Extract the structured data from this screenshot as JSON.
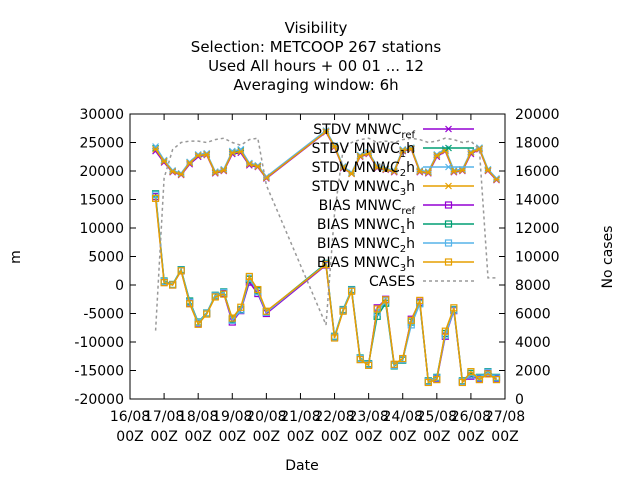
{
  "chart_data": {
    "type": "line",
    "title_lines": [
      "Visibility",
      "Selection: METCOOP     267 stations",
      "Used  All hours  + 00 01 ... 12",
      "Averaging window:  6h"
    ],
    "xlabel": "Date",
    "ylabel": "m",
    "y2label": "No cases",
    "ylim": [
      -20000,
      30000
    ],
    "y2lim": [
      0,
      20000
    ],
    "yticks": [
      -20000,
      -15000,
      -10000,
      -5000,
      0,
      5000,
      10000,
      15000,
      20000,
      25000,
      30000
    ],
    "y2ticks": [
      0,
      2000,
      4000,
      6000,
      8000,
      10000,
      12000,
      14000,
      16000,
      18000,
      20000
    ],
    "xlim": [
      0,
      11
    ],
    "xticks": [
      {
        "value": 0,
        "line1": "16/08",
        "line2": "00Z"
      },
      {
        "value": 1,
        "line1": "17/08",
        "line2": "00Z"
      },
      {
        "value": 2,
        "line1": "18/08",
        "line2": "00Z"
      },
      {
        "value": 3,
        "line1": "19/08",
        "line2": "00Z"
      },
      {
        "value": 4,
        "line1": "20/08",
        "line2": "00Z"
      },
      {
        "value": 5,
        "line1": "21/08",
        "line2": "00Z"
      },
      {
        "value": 6,
        "line1": "22/08",
        "line2": "00Z"
      },
      {
        "value": 7,
        "line1": "23/08",
        "line2": "00Z"
      },
      {
        "value": 8,
        "line1": "24/08",
        "line2": "00Z"
      },
      {
        "value": 9,
        "line1": "25/08",
        "line2": "00Z"
      },
      {
        "value": 10,
        "line1": "26/08",
        "line2": "00Z"
      },
      {
        "value": 11,
        "line1": "27/08",
        "line2": "00Z"
      }
    ],
    "x": [
      0.75,
      1.0,
      1.25,
      1.5,
      1.75,
      2.0,
      2.25,
      2.5,
      2.75,
      3.0,
      3.25,
      3.5,
      3.75,
      4.0,
      5.75,
      6.0,
      6.25,
      6.5,
      6.75,
      7.0,
      7.25,
      7.5,
      7.75,
      8.0,
      8.25,
      8.5,
      8.75,
      9.0,
      9.25,
      9.5,
      9.75,
      10.0,
      10.25,
      10.5,
      10.75
    ],
    "series": [
      {
        "name": "STDV MNWC_ref",
        "base": "STDV MNWC",
        "sub": "ref",
        "color": "#9400d3",
        "marker": "x",
        "dash": false,
        "axis": "y1",
        "values": [
          23500,
          21500,
          19800,
          19300,
          21200,
          22500,
          22800,
          19600,
          20000,
          23000,
          23200,
          21000,
          20700,
          18700,
          26800,
          24200,
          20500,
          19500,
          22500,
          23000,
          20500,
          20200,
          19800,
          23500,
          23800,
          19800,
          19600,
          22500,
          23500,
          19800,
          20000,
          23000,
          23800,
          20000,
          18400
        ]
      },
      {
        "name": "STDV MNWC_1h",
        "base": "STDV MNWC",
        "sub": "1",
        "suffix": "h",
        "color": "#009e73",
        "marker": "x",
        "dash": false,
        "axis": "y1",
        "values": [
          24000,
          21800,
          20000,
          19500,
          21500,
          22800,
          23000,
          19800,
          20200,
          23300,
          23600,
          21300,
          20900,
          18900,
          27000,
          24400,
          20700,
          19600,
          22700,
          23200,
          20700,
          20400,
          20000,
          23700,
          24000,
          20000,
          19800,
          22800,
          23800,
          20000,
          20200,
          23300,
          24000,
          20200,
          18600
        ]
      },
      {
        "name": "STDV MNWC_2h",
        "base": "STDV MNWC",
        "sub": "2",
        "suffix": "h",
        "color": "#56b4e9",
        "marker": "x",
        "dash": false,
        "axis": "y1",
        "values": [
          24300,
          21900,
          20100,
          19600,
          21600,
          22900,
          23100,
          19900,
          20300,
          23500,
          23800,
          21400,
          21000,
          19000,
          27100,
          24500,
          20800,
          19700,
          22800,
          23300,
          20800,
          20500,
          20100,
          23800,
          24100,
          20100,
          19900,
          22900,
          23900,
          20100,
          20300,
          23400,
          24100,
          20300,
          18700
        ]
      },
      {
        "name": "STDV MNWC_3h",
        "base": "STDV MNWC",
        "sub": "3",
        "suffix": "h",
        "color": "#e69f00",
        "marker": "x",
        "dash": false,
        "axis": "y1",
        "values": [
          23800,
          21700,
          19900,
          19400,
          21400,
          22700,
          22900,
          19700,
          20100,
          23200,
          23400,
          21200,
          20800,
          18800,
          26900,
          24300,
          20600,
          19500,
          22600,
          23100,
          20600,
          20300,
          19900,
          23600,
          23900,
          19900,
          19700,
          22700,
          23600,
          19900,
          20100,
          23200,
          23900,
          20100,
          18500
        ]
      },
      {
        "name": "BIAS MNWC_ref",
        "base": "BIAS MNWC",
        "sub": "ref",
        "color": "#9400d3",
        "marker": "square",
        "dash": false,
        "axis": "y1",
        "values": [
          15500,
          500,
          0,
          2500,
          -3200,
          -6800,
          -5000,
          -2000,
          -1500,
          -6500,
          -4500,
          500,
          -1500,
          -5000,
          3500,
          -9200,
          -4500,
          -1000,
          -13000,
          -14000,
          -4000,
          -2500,
          -14000,
          -13000,
          -6000,
          -3000,
          -17000,
          -16500,
          -9000,
          -4500,
          -17000,
          -16000,
          -16500,
          -15500,
          -16500
        ]
      },
      {
        "name": "BIAS MNWC_1h",
        "base": "BIAS MNWC",
        "sub": "1",
        "suffix": "h",
        "color": "#009e73",
        "marker": "square",
        "dash": false,
        "axis": "y1",
        "values": [
          16000,
          700,
          100,
          2700,
          -2800,
          -6500,
          -4900,
          -1800,
          -1200,
          -6000,
          -4300,
          1000,
          -1000,
          -4700,
          3800,
          -9000,
          -4300,
          -800,
          -12800,
          -13800,
          -5500,
          -3200,
          -14200,
          -13200,
          -6500,
          -3200,
          -16800,
          -16200,
          -8500,
          -4300,
          -16800,
          -15500,
          -16200,
          -15200,
          -16200
        ]
      },
      {
        "name": "BIAS MNWC_2h",
        "base": "BIAS MNWC",
        "sub": "2",
        "suffix": "h",
        "color": "#56b4e9",
        "marker": "square",
        "dash": false,
        "axis": "y1",
        "values": [
          15800,
          600,
          50,
          2600,
          -3000,
          -6600,
          -4950,
          -1900,
          -1300,
          -6200,
          -4400,
          1200,
          -1200,
          -4800,
          3700,
          -9100,
          -4400,
          -900,
          -12900,
          -13900,
          -4800,
          -2800,
          -14100,
          -13100,
          -7000,
          -3300,
          -16900,
          -16300,
          -8800,
          -4400,
          -16900,
          -15800,
          -16300,
          -15300,
          -16300
        ]
      },
      {
        "name": "BIAS MNWC_3h",
        "base": "BIAS MNWC",
        "sub": "3",
        "suffix": "h",
        "color": "#e69f00",
        "marker": "square",
        "dash": false,
        "axis": "y1",
        "values": [
          15200,
          400,
          0,
          2500,
          -3300,
          -6900,
          -5100,
          -2100,
          -1600,
          -5800,
          -3900,
          1500,
          -800,
          -4600,
          3600,
          -9300,
          -4600,
          -1100,
          -13100,
          -14100,
          -4200,
          -2600,
          -13900,
          -12900,
          -6200,
          -2700,
          -17100,
          -16600,
          -8100,
          -4000,
          -17100,
          -15200,
          -16600,
          -15600,
          -16600
        ]
      },
      {
        "name": "CASES",
        "base": "CASES",
        "color": "#999999",
        "marker": "none",
        "dash": true,
        "axis": "y2",
        "values": [
          4800,
          15500,
          17500,
          18000,
          18100,
          18100,
          18000,
          18200,
          18300,
          18000,
          17800,
          18200,
          18300,
          15000,
          5200,
          13000,
          17500,
          18000,
          18200,
          18300,
          18000,
          18100,
          18000,
          18200,
          18300,
          18200,
          18000,
          18100,
          18300,
          18200,
          18000,
          18100,
          17500,
          8500,
          8500
        ]
      }
    ]
  }
}
